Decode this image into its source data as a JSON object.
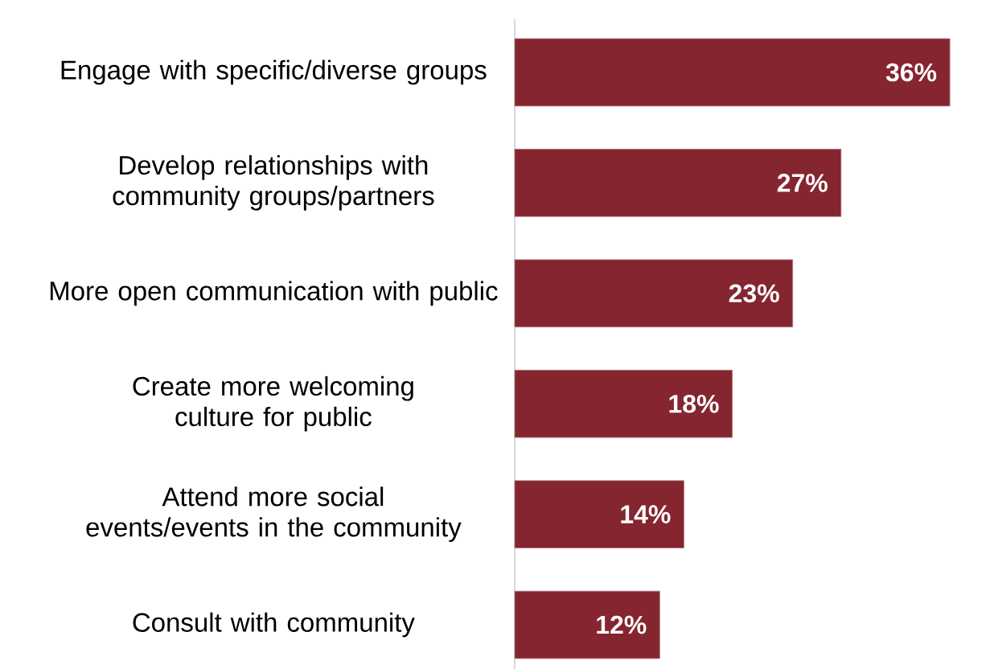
{
  "chart_data": {
    "type": "bar",
    "orientation": "horizontal",
    "categories": [
      "Engage with specific/diverse groups",
      "Develop relationships with community groups/partners",
      "More open communication with public",
      "Create more welcoming culture for public",
      "Attend more social events/events in the community",
      "Consult with community"
    ],
    "values": [
      36,
      27,
      23,
      18,
      14,
      12
    ],
    "value_labels": [
      "36%",
      "27%",
      "23%",
      "18%",
      "14%",
      "12%"
    ],
    "color": "#84252f"
  }
}
